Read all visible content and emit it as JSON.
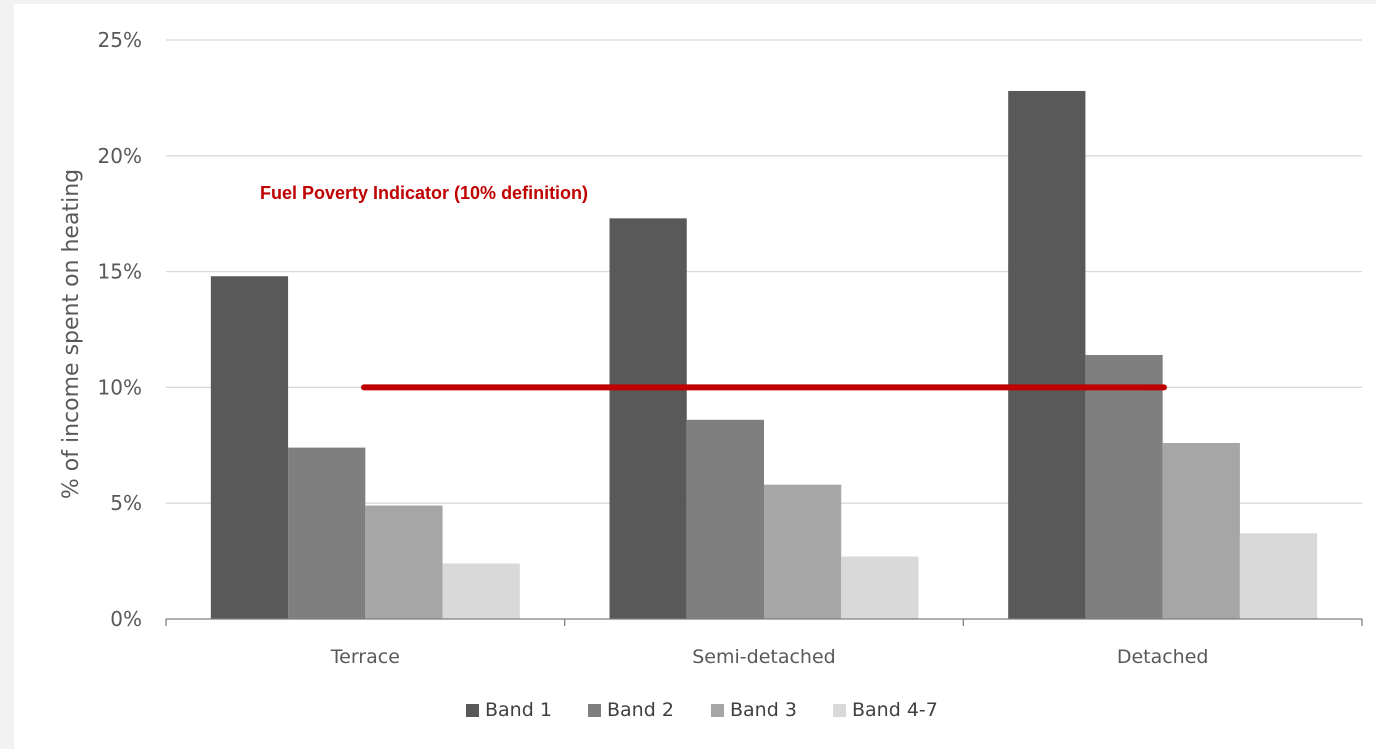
{
  "chart_data": {
    "type": "bar",
    "title": "",
    "xlabel": "",
    "ylabel": "% of income spent on heating",
    "ylim": [
      0,
      25
    ],
    "yticks": [
      0,
      5,
      10,
      15,
      20,
      25
    ],
    "ytick_labels": [
      "0%",
      "5%",
      "10%",
      "15%",
      "20%",
      "25%"
    ],
    "categories": [
      "Terrace",
      "Semi-detached",
      "Detached"
    ],
    "series": [
      {
        "name": "Band 1",
        "values": [
          14.8,
          17.3,
          22.8
        ],
        "color": "#595959"
      },
      {
        "name": "Band 2",
        "values": [
          7.4,
          8.6,
          11.4
        ],
        "color": "#7f7f7f"
      },
      {
        "name": "Band 3",
        "values": [
          4.9,
          5.8,
          7.6
        ],
        "color": "#a6a6a6"
      },
      {
        "name": "Band 4-7",
        "values": [
          2.4,
          2.7,
          3.7
        ],
        "color": "#d9d9d9"
      }
    ],
    "grid": true,
    "legend": "bottom",
    "reference_line": {
      "value": 10,
      "label": "Fuel Poverty Indicator (10% definition)",
      "color": "#c00000"
    }
  }
}
